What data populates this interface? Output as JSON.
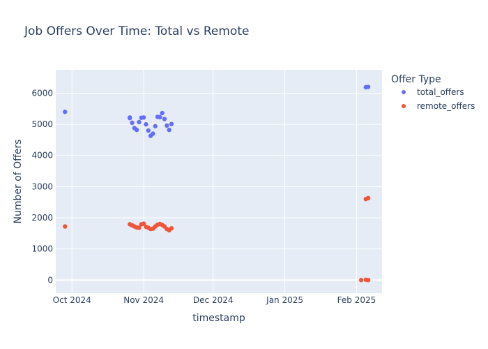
{
  "chart_data": {
    "type": "scatter",
    "title": "Job Offers Over Time: Total vs Remote",
    "xlabel": "timestamp",
    "ylabel": "Number of Offers",
    "x_ticks": [
      "Oct 2024",
      "Nov 2024",
      "Dec 2024",
      "Jan 2025",
      "Feb 2025"
    ],
    "x_tick_dates": [
      "2024-10-01",
      "2024-11-01",
      "2024-12-01",
      "2025-01-01",
      "2025-02-01"
    ],
    "xlim": [
      "2024-09-24",
      "2025-02-12"
    ],
    "y_ticks": [
      0,
      1000,
      2000,
      3000,
      4000,
      5000,
      6000
    ],
    "ylim": [
      -420,
      6750
    ],
    "grid": true,
    "legend": {
      "title": "Offer Type",
      "placement": "right"
    },
    "series": [
      {
        "name": "total_offers",
        "color": "#636efa",
        "points": [
          {
            "x": "2024-09-28",
            "y": 5400
          },
          {
            "x": "2024-10-26",
            "y": 5200
          },
          {
            "x": "2024-10-26",
            "y": 5220
          },
          {
            "x": "2024-10-27",
            "y": 5050
          },
          {
            "x": "2024-10-28",
            "y": 4880
          },
          {
            "x": "2024-10-29",
            "y": 4820
          },
          {
            "x": "2024-10-30",
            "y": 5070
          },
          {
            "x": "2024-10-31",
            "y": 5210
          },
          {
            "x": "2024-11-01",
            "y": 5220
          },
          {
            "x": "2024-11-02",
            "y": 5000
          },
          {
            "x": "2024-11-03",
            "y": 4800
          },
          {
            "x": "2024-11-04",
            "y": 4630
          },
          {
            "x": "2024-11-05",
            "y": 4700
          },
          {
            "x": "2024-11-06",
            "y": 4940
          },
          {
            "x": "2024-11-07",
            "y": 5240
          },
          {
            "x": "2024-11-08",
            "y": 5230
          },
          {
            "x": "2024-11-09",
            "y": 5360
          },
          {
            "x": "2024-11-10",
            "y": 5170
          },
          {
            "x": "2024-11-11",
            "y": 4960
          },
          {
            "x": "2024-11-12",
            "y": 4820
          },
          {
            "x": "2024-11-13",
            "y": 5010
          },
          {
            "x": "2025-02-05",
            "y": 6190
          },
          {
            "x": "2025-02-06",
            "y": 6200
          }
        ]
      },
      {
        "name": "remote_offers",
        "color": "#ef553b",
        "points": [
          {
            "x": "2024-09-28",
            "y": 1720
          },
          {
            "x": "2024-10-26",
            "y": 1790
          },
          {
            "x": "2024-10-27",
            "y": 1760
          },
          {
            "x": "2024-10-28",
            "y": 1720
          },
          {
            "x": "2024-10-29",
            "y": 1690
          },
          {
            "x": "2024-10-30",
            "y": 1680
          },
          {
            "x": "2024-10-31",
            "y": 1790
          },
          {
            "x": "2024-11-01",
            "y": 1810
          },
          {
            "x": "2024-11-02",
            "y": 1710
          },
          {
            "x": "2024-11-03",
            "y": 1680
          },
          {
            "x": "2024-11-04",
            "y": 1640
          },
          {
            "x": "2024-11-05",
            "y": 1650
          },
          {
            "x": "2024-11-06",
            "y": 1720
          },
          {
            "x": "2024-11-07",
            "y": 1780
          },
          {
            "x": "2024-11-08",
            "y": 1800
          },
          {
            "x": "2024-11-09",
            "y": 1770
          },
          {
            "x": "2024-11-10",
            "y": 1720
          },
          {
            "x": "2024-11-11",
            "y": 1640
          },
          {
            "x": "2024-11-12",
            "y": 1600
          },
          {
            "x": "2024-11-13",
            "y": 1660
          },
          {
            "x": "2025-02-03",
            "y": 0
          },
          {
            "x": "2025-02-05",
            "y": 10
          },
          {
            "x": "2025-02-06",
            "y": 0
          },
          {
            "x": "2025-02-05",
            "y": 2600
          },
          {
            "x": "2025-02-06",
            "y": 2630
          }
        ]
      }
    ]
  }
}
